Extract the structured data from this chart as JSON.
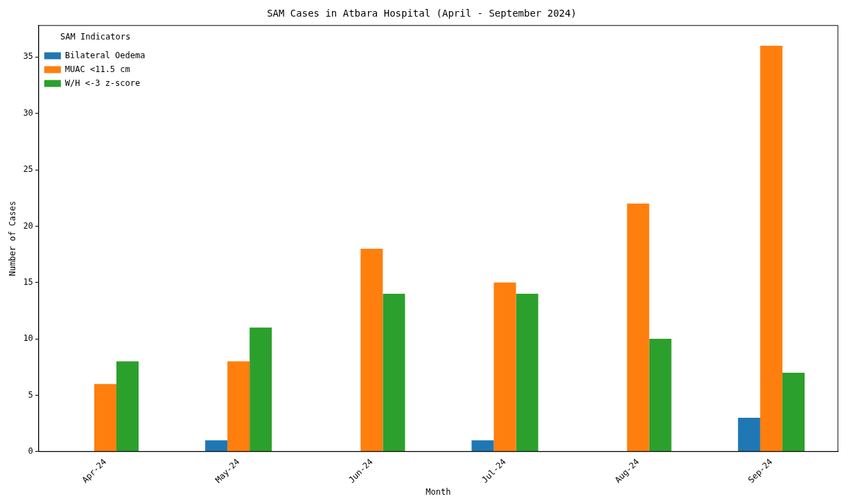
{
  "chart_data": {
    "type": "bar",
    "title": "SAM Cases in Atbara Hospital (April - September 2024)",
    "xlabel": "Month",
    "ylabel": "Number of Cases",
    "legend_title": "SAM Indicators",
    "categories": [
      "Apr-24",
      "May-24",
      "Jun-24",
      "Jul-24",
      "Aug-24",
      "Sep-24"
    ],
    "series": [
      {
        "name": "Bilateral Oedema",
        "color": "#1f77b4",
        "values": [
          0,
          1,
          0,
          1,
          0,
          3
        ]
      },
      {
        "name": "MUAC <11.5 cm",
        "color": "#ff7f0e",
        "values": [
          6,
          8,
          18,
          15,
          22,
          36
        ]
      },
      {
        "name": "W/H <-3 z-score",
        "color": "#2ca02c",
        "values": [
          8,
          11,
          14,
          14,
          10,
          7
        ]
      }
    ],
    "ylim": [
      0,
      37.8
    ],
    "yticks": [
      0,
      5,
      10,
      15,
      20,
      25,
      30,
      35
    ],
    "grid": false,
    "legend": "top left"
  }
}
